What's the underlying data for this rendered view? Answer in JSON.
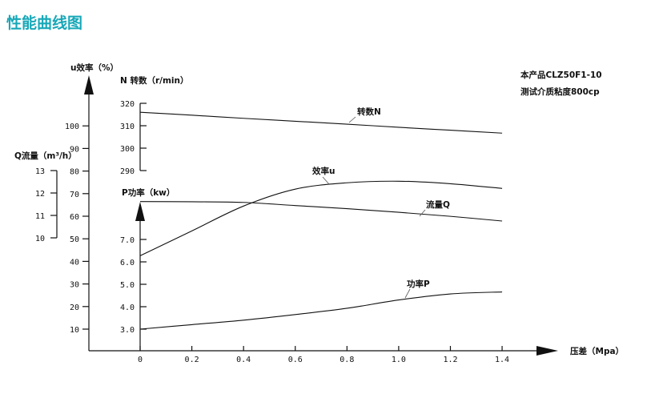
{
  "title": "性能曲线图",
  "notes": [
    "本产品CLZ50F1-10",
    "测试介质粘度800cp"
  ],
  "colors": {
    "title": "#17a8b8",
    "lines": "#111111"
  },
  "chart_data": {
    "type": "line",
    "xlabel": "压差（Mpa）",
    "x_ticks": [
      "0",
      "0.2",
      "0.4",
      "0.6",
      "0.8",
      "1.0",
      "1.2",
      "1.4"
    ],
    "xlim": [
      0,
      1.4
    ],
    "x": [
      0,
      0.2,
      0.4,
      0.6,
      0.8,
      1.0,
      1.2,
      1.4
    ],
    "grid": false,
    "axes": {
      "efficiency": {
        "label": "u效率（%）",
        "ticks": [
          "10",
          "20",
          "30",
          "40",
          "50",
          "60",
          "70",
          "80",
          "90",
          "100"
        ],
        "range": [
          0,
          100
        ]
      },
      "speed": {
        "label": "N 转数（r/min）",
        "ticks": [
          "290",
          "300",
          "310",
          "320"
        ],
        "range": [
          290,
          320
        ]
      },
      "flow": {
        "label": "Q流量（m³/h）",
        "ticks": [
          "10",
          "11",
          "12",
          "13"
        ],
        "range": [
          10,
          13
        ]
      },
      "power": {
        "label": "P功率（kw）",
        "ticks": [
          "3.0",
          "4.0",
          "5.0",
          "6.0",
          "7.0"
        ],
        "range": [
          3,
          7
        ]
      }
    },
    "series": [
      {
        "name": "转数N",
        "axis": "speed",
        "values": [
          316,
          314.7,
          313.3,
          312,
          310.7,
          309.3,
          308,
          306.7
        ]
      },
      {
        "name": "效率u",
        "axis": "efficiency",
        "values": [
          42.5,
          53.5,
          64.5,
          72,
          74.8,
          75.5,
          74.4,
          72.3
        ]
      },
      {
        "name": "流量Q",
        "axis": "flow",
        "values": [
          11.62,
          11.61,
          11.58,
          11.44,
          11.3,
          11.14,
          10.96,
          10.75
        ]
      },
      {
        "name": "功率P",
        "axis": "power",
        "values": [
          3.0,
          3.2,
          3.4,
          3.65,
          3.93,
          4.3,
          4.57,
          4.66
        ]
      }
    ]
  }
}
